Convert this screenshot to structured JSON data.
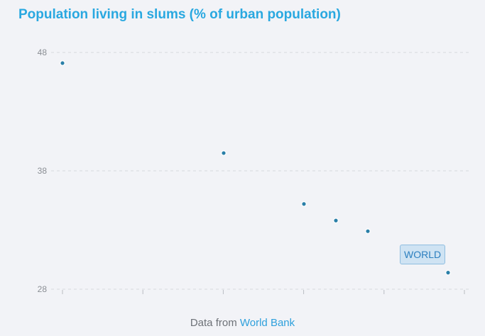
{
  "chart_data": {
    "type": "scatter",
    "title": "Population living in slums (% of urban population)",
    "xlabel": "",
    "ylabel": "",
    "y_ticks": [
      48,
      38,
      28
    ],
    "ylim": [
      28,
      48
    ],
    "grid": true,
    "x_tick_count": 6,
    "series": [
      {
        "values": [
          47.1,
          39.5,
          35.2,
          33.8,
          32.9,
          29.4
        ],
        "highlight_label": "WORLD"
      }
    ],
    "colors": {
      "point": "#2a7fa8",
      "title": "#29a8e0",
      "link": "#2ea0dc"
    }
  },
  "footer": {
    "prefix": "Data from",
    "link_text": "World Bank"
  }
}
